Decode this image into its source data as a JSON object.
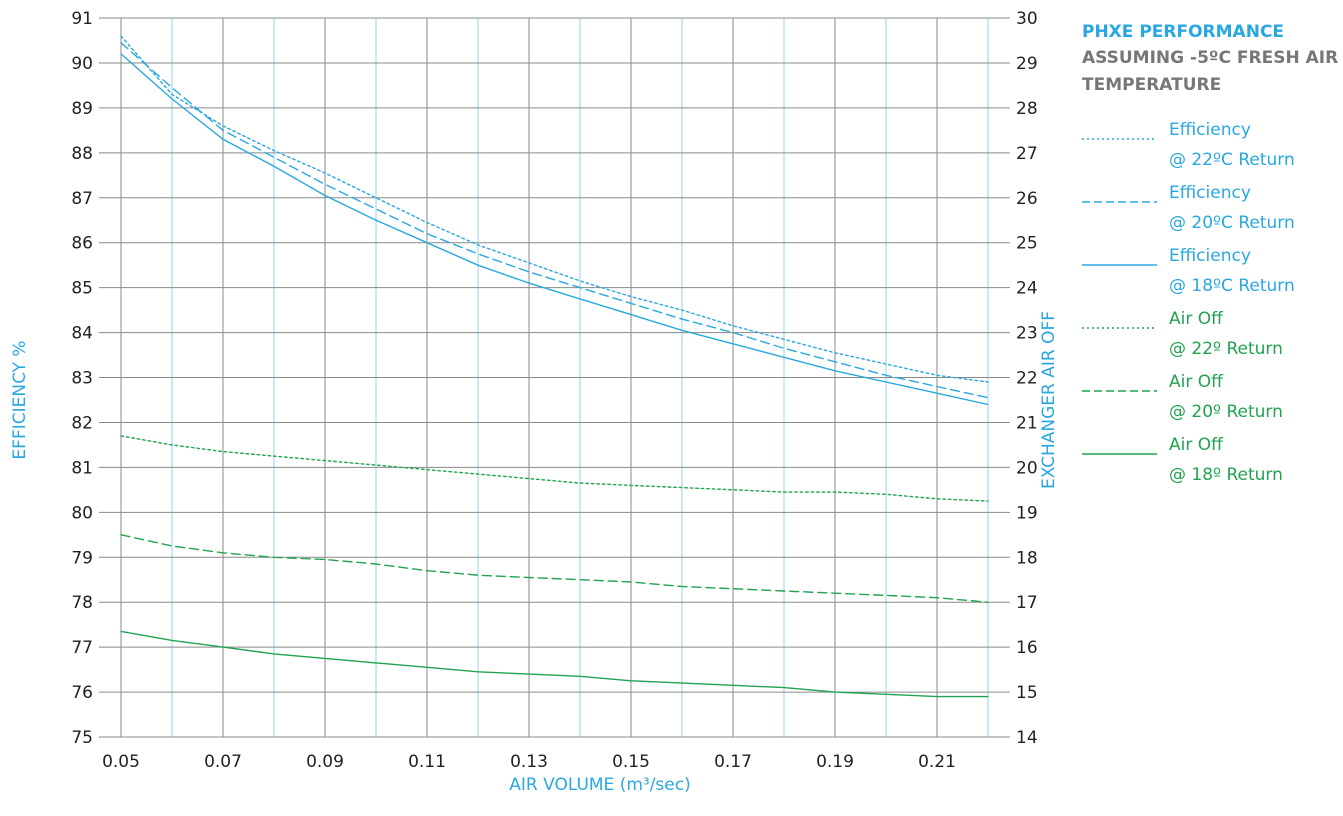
{
  "legend": {
    "title": "PHXE PERFORMANCE",
    "subtitle": "ASSUMING -5ºC FRESH AIR TEMPERATURE",
    "items": [
      {
        "line1": "Efficiency",
        "line2": "@ 22ºC Return",
        "color": "#29a8e0",
        "style": "dotted"
      },
      {
        "line1": "Efficiency",
        "line2": "@ 20ºC Return",
        "color": "#29a8e0",
        "style": "dashed"
      },
      {
        "line1": "Efficiency",
        "line2": "@ 18ºC Return",
        "color": "#29a8e0",
        "style": "solid"
      },
      {
        "line1": "Air Off",
        "line2": "@ 22º Return",
        "color": "#21a34f",
        "style": "dotted"
      },
      {
        "line1": "Air Off",
        "line2": "@ 20º Return",
        "color": "#21a34f",
        "style": "dashed"
      },
      {
        "line1": "Air Off",
        "line2": "@ 18º Return",
        "color": "#21a34f",
        "style": "solid"
      }
    ]
  },
  "colors": {
    "efficiency": "#29a8e0",
    "air_off": "#21a34f",
    "grid_dark": "#8a8a8a",
    "grid_light": "#8fd4ee"
  },
  "chart_data": {
    "type": "line",
    "title": "PHXE PERFORMANCE",
    "subtitle": "ASSUMING -5ºC FRESH AIR TEMPERATURE",
    "xlabel": "AIR VOLUME (m³/sec)",
    "ylabel_left": "EFFICIENCY %",
    "ylabel_right": "EXCHANGER AIR OFF",
    "xlim": [
      0.05,
      0.22
    ],
    "ylim_left": [
      75,
      91
    ],
    "ylim_right": [
      14,
      30
    ],
    "x_ticks": [
      0.05,
      0.07,
      0.09,
      0.11,
      0.13,
      0.15,
      0.17,
      0.19,
      0.21
    ],
    "x_tick_labels": [
      "0.05",
      "0.07",
      "0.09",
      "0.11",
      "0.13",
      "0.15",
      "0.17",
      "0.19",
      "0.21"
    ],
    "y_ticks_left": [
      75,
      76,
      77,
      78,
      79,
      80,
      81,
      82,
      83,
      84,
      85,
      86,
      87,
      88,
      89,
      90,
      91
    ],
    "y_ticks_right": [
      14,
      15,
      16,
      17,
      18,
      19,
      20,
      21,
      22,
      23,
      24,
      25,
      26,
      27,
      28,
      29,
      30
    ],
    "grid": true,
    "legend_position": "right",
    "x": [
      0.05,
      0.06,
      0.07,
      0.08,
      0.09,
      0.1,
      0.11,
      0.12,
      0.13,
      0.14,
      0.15,
      0.16,
      0.17,
      0.18,
      0.19,
      0.2,
      0.21,
      0.22
    ],
    "series": [
      {
        "name": "Efficiency @ 22ºC Return",
        "axis": "left",
        "style": "dotted",
        "values": [
          90.6,
          89.3,
          88.6,
          88.05,
          87.55,
          87.0,
          86.45,
          85.95,
          85.55,
          85.15,
          84.8,
          84.5,
          84.15,
          83.85,
          83.55,
          83.3,
          83.05,
          82.9
        ]
      },
      {
        "name": "Efficiency @ 20ºC Return",
        "axis": "left",
        "style": "dashed",
        "values": [
          90.45,
          89.45,
          88.5,
          87.9,
          87.3,
          86.75,
          86.2,
          85.75,
          85.35,
          85.0,
          84.65,
          84.3,
          84.0,
          83.65,
          83.35,
          83.05,
          82.8,
          82.55
        ]
      },
      {
        "name": "Efficiency @ 18ºC Return",
        "axis": "left",
        "style": "solid",
        "values": [
          90.2,
          89.2,
          88.3,
          87.7,
          87.05,
          86.5,
          86.0,
          85.5,
          85.1,
          84.75,
          84.4,
          84.05,
          83.75,
          83.45,
          83.15,
          82.9,
          82.65,
          82.4
        ]
      },
      {
        "name": "Air Off @ 22º Return",
        "axis": "left",
        "style": "dotted",
        "values": [
          81.7,
          81.5,
          81.35,
          81.25,
          81.15,
          81.05,
          80.95,
          80.85,
          80.75,
          80.65,
          80.6,
          80.55,
          80.5,
          80.45,
          80.45,
          80.4,
          80.3,
          80.25
        ]
      },
      {
        "name": "Air Off @ 20º Return",
        "axis": "left",
        "style": "dashed",
        "values": [
          79.5,
          79.25,
          79.1,
          79.0,
          78.95,
          78.85,
          78.7,
          78.6,
          78.55,
          78.5,
          78.45,
          78.35,
          78.3,
          78.25,
          78.2,
          78.15,
          78.1,
          78.0
        ]
      },
      {
        "name": "Air Off @ 18º Return",
        "axis": "left",
        "style": "solid",
        "values": [
          77.35,
          77.15,
          77.0,
          76.85,
          76.75,
          76.65,
          76.55,
          76.45,
          76.4,
          76.35,
          76.25,
          76.2,
          76.15,
          76.1,
          76.0,
          75.95,
          75.9,
          75.9
        ]
      }
    ]
  }
}
